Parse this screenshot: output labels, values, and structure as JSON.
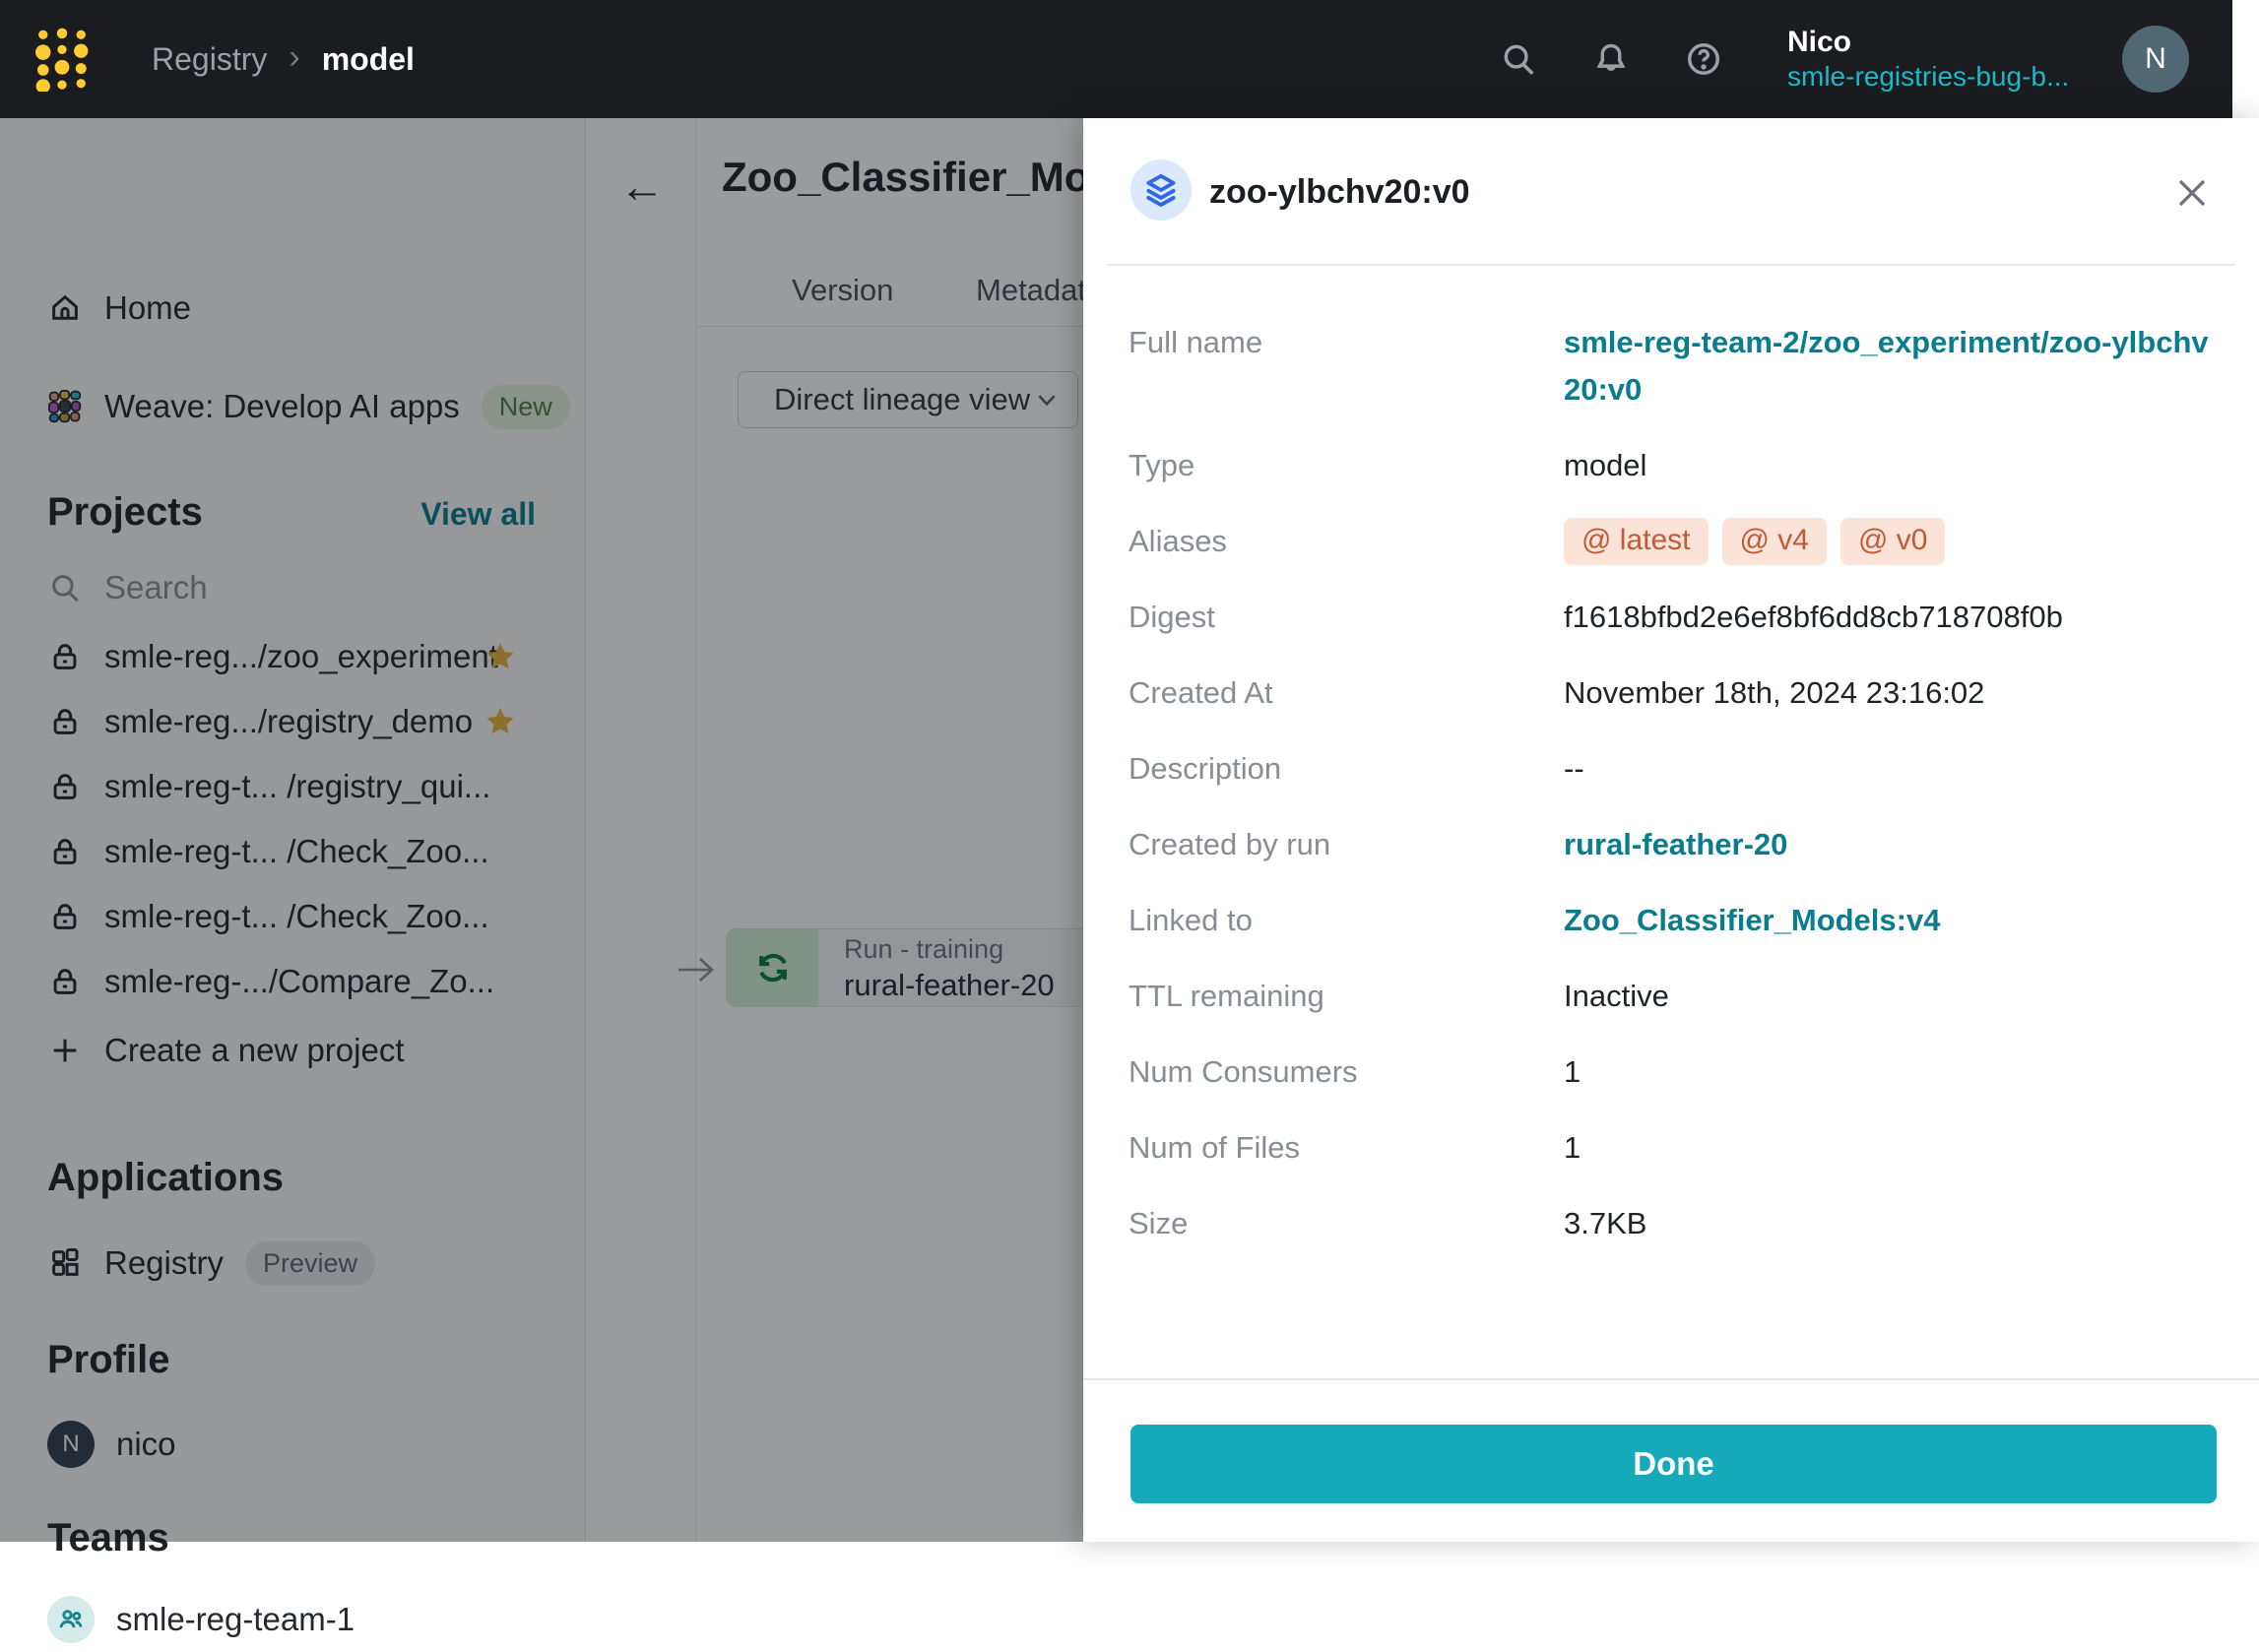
{
  "navbar": {
    "breadcrumb_root": "Registry",
    "breadcrumb_current": "model",
    "user_name": "Nico",
    "user_team": "smle-registries-bug-b...",
    "avatar_initial": "N"
  },
  "sidebar": {
    "home_label": "Home",
    "weave_label": "Weave: Develop AI apps",
    "weave_badge": "New",
    "projects_header": "Projects",
    "view_all_label": "View all",
    "search_placeholder": "Search",
    "projects": [
      {
        "label": "smle-reg.../zoo_experiment",
        "starred": true
      },
      {
        "label": "smle-reg.../registry_demo",
        "starred": true
      },
      {
        "label": "smle-reg-t... /registry_qui...",
        "starred": false
      },
      {
        "label": "smle-reg-t... /Check_Zoo...",
        "starred": false
      },
      {
        "label": "smle-reg-t... /Check_Zoo...",
        "starred": false
      },
      {
        "label": "smle-reg-.../Compare_Zo...",
        "starred": false
      }
    ],
    "create_project_label": "Create a new project",
    "applications_header": "Applications",
    "registry_label": "Registry",
    "registry_badge": "Preview",
    "profile_header": "Profile",
    "profile_name": "nico",
    "profile_initial": "N",
    "teams_header": "Teams",
    "team_name": "smle-reg-team-1"
  },
  "main": {
    "title": "Zoo_Classifier_Mo",
    "tab_version": "Version",
    "tab_metadata": "Metadat",
    "lineage_view_label": "Direct lineage view",
    "run_node": {
      "type_label": "Run - training",
      "name": "rural-feather-20"
    }
  },
  "drawer": {
    "title": "zoo-ylbchv20:v0",
    "fields": [
      {
        "label": "Full name",
        "kind": "link",
        "value": "smle-reg-team-2/zoo_experiment/zoo-ylbchv20:v0"
      },
      {
        "label": "Type",
        "kind": "text",
        "value": "model"
      },
      {
        "label": "Aliases",
        "kind": "aliases",
        "values": [
          "latest",
          "v4",
          "v0"
        ]
      },
      {
        "label": "Digest",
        "kind": "text",
        "value": "f1618bfbd2e6ef8bf6dd8cb718708f0b"
      },
      {
        "label": "Created At",
        "kind": "text",
        "value": "November 18th, 2024 23:16:02"
      },
      {
        "label": "Description",
        "kind": "text",
        "value": "--"
      },
      {
        "label": "Created by run",
        "kind": "link",
        "value": "rural-feather-20"
      },
      {
        "label": "Linked to",
        "kind": "link",
        "value": "Zoo_Classifier_Models:v4"
      },
      {
        "label": "TTL remaining",
        "kind": "text",
        "value": "Inactive"
      },
      {
        "label": "Num Consumers",
        "kind": "text",
        "value": "1"
      },
      {
        "label": "Num of Files",
        "kind": "text",
        "value": "1"
      },
      {
        "label": "Size",
        "kind": "text",
        "value": "3.7KB"
      }
    ],
    "done_label": "Done"
  },
  "colors": {
    "accent_teal": "#15A9B9",
    "link_teal": "#0A7C8E",
    "nav_team_teal": "#1EB8C7",
    "alias_bg": "#FBE3D7",
    "alias_text": "#BF5B3B",
    "run_node_green": "#D2F1D8",
    "run_icon_green": "#0B7B49",
    "star_gold": "#E3B341",
    "navbar_bg": "#1A1C20",
    "logo_gold": "#FFCC33",
    "artifact_icon_blue": "#2E68E8"
  }
}
